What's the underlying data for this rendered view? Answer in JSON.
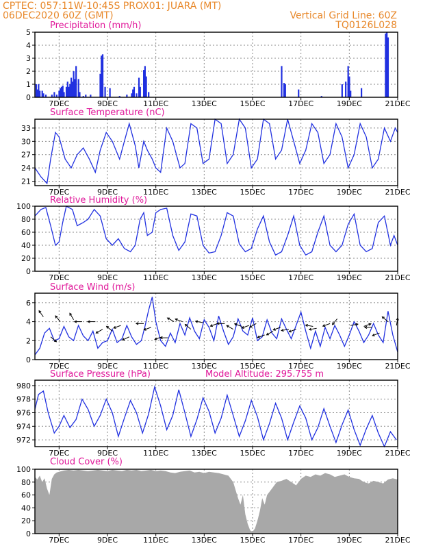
{
  "header": {
    "line1_left": "CPTEC:   057:11W-10:45S   PROX01: JUARA (MT)",
    "line2_left": "06DEC2020 60Z (GMT)",
    "line1_right": "Vertical Grid Line: 60Z",
    "line2_right": "TQ0126L028"
  },
  "colors": {
    "header": "#e8882a",
    "title": "#e0189a",
    "line": "#2030e0",
    "cloud": "#a8a8a8",
    "arrow": "#000000"
  },
  "x_axis": {
    "tick_labels": [
      "7DEC",
      "9DEC",
      "11DEC",
      "13DEC",
      "15DEC",
      "17DEC",
      "19DEC",
      "21DEC"
    ],
    "tick_days": [
      7,
      9,
      11,
      13,
      15,
      17,
      19,
      21
    ],
    "xlim": [
      6.0,
      21.0
    ]
  },
  "chart_data": [
    {
      "id": "precip",
      "type": "bar",
      "title": "Precipitation (mm/h)",
      "ylim": [
        0,
        5
      ],
      "yticks": [
        0,
        1,
        2,
        3,
        4,
        5
      ],
      "x": [
        6.05,
        6.1,
        6.15,
        6.2,
        6.3,
        6.35,
        6.45,
        6.7,
        6.8,
        6.9,
        7.0,
        7.05,
        7.1,
        7.15,
        7.2,
        7.3,
        7.35,
        7.4,
        7.45,
        7.5,
        7.55,
        7.6,
        7.65,
        7.7,
        7.8,
        7.85,
        8.0,
        8.1,
        8.3,
        8.7,
        8.75,
        8.8,
        8.9,
        9.1,
        9.5,
        9.8,
        10.0,
        10.05,
        10.1,
        10.2,
        10.3,
        10.35,
        10.5,
        10.55,
        10.6,
        10.7,
        16.2,
        16.3,
        16.35,
        16.9,
        17.85,
        18.7,
        18.85,
        18.95,
        19.0,
        19.05,
        19.5,
        20.5,
        20.55,
        20.6
      ],
      "values": [
        1.0,
        0.6,
        1.0,
        0.5,
        0.5,
        0.3,
        0.2,
        0.2,
        0.4,
        0.2,
        0.5,
        0.7,
        0.8,
        0.9,
        0.4,
        0.8,
        1.2,
        0.8,
        1.0,
        1.5,
        1.2,
        2.0,
        1.4,
        2.4,
        1.4,
        0.4,
        0.1,
        0.2,
        0.2,
        1.8,
        3.2,
        3.3,
        0.8,
        0.7,
        0.1,
        0.2,
        0.3,
        0.6,
        0.8,
        0.3,
        1.5,
        0.8,
        2.1,
        2.4,
        1.6,
        0.4,
        2.4,
        1.1,
        1.0,
        0.6,
        0.1,
        1.0,
        1.2,
        2.4,
        1.6,
        0.5,
        0.7,
        4.9,
        5.0,
        4.6
      ]
    },
    {
      "id": "temp",
      "type": "line",
      "title": "Surface Temperature (nC)",
      "ylim": [
        20,
        35
      ],
      "yticks": [
        21,
        24,
        27,
        30,
        33
      ],
      "x": [
        6.0,
        6.25,
        6.5,
        6.65,
        6.85,
        7.0,
        7.25,
        7.5,
        7.75,
        8.0,
        8.25,
        8.5,
        8.7,
        8.95,
        9.2,
        9.5,
        9.7,
        9.9,
        10.15,
        10.3,
        10.5,
        10.65,
        10.85,
        11.0,
        11.2,
        11.45,
        11.7,
        12.0,
        12.2,
        12.45,
        12.7,
        12.95,
        13.2,
        13.45,
        13.7,
        13.95,
        14.2,
        14.45,
        14.7,
        14.95,
        15.2,
        15.45,
        15.7,
        15.95,
        16.2,
        16.45,
        16.7,
        16.95,
        17.2,
        17.45,
        17.7,
        17.95,
        18.2,
        18.45,
        18.7,
        18.95,
        19.2,
        19.45,
        19.7,
        19.95,
        20.2,
        20.45,
        20.7,
        20.9,
        21.0
      ],
      "values": [
        24,
        22,
        20.5,
        26,
        32,
        31,
        26,
        24,
        27,
        28.5,
        26,
        23,
        28,
        32,
        30,
        26,
        30,
        34,
        29,
        24,
        30,
        28,
        26,
        24,
        23,
        33,
        30,
        24,
        25,
        34,
        33,
        25,
        26,
        35,
        34,
        25,
        27,
        35,
        33,
        24,
        26,
        35,
        34,
        26,
        28,
        35,
        30,
        25,
        28,
        34,
        32,
        25,
        27,
        34,
        31,
        24,
        27,
        34,
        31,
        24,
        26,
        33,
        30,
        33,
        32
      ]
    },
    {
      "id": "rh",
      "type": "line",
      "title": "Relative Humidity (%)",
      "ylim": [
        0,
        100
      ],
      "yticks": [
        0,
        20,
        40,
        60,
        80,
        100
      ],
      "x": [
        6.0,
        6.25,
        6.45,
        6.65,
        6.85,
        7.0,
        7.15,
        7.3,
        7.55,
        7.75,
        8.0,
        8.2,
        8.45,
        8.7,
        8.95,
        9.2,
        9.45,
        9.7,
        9.95,
        10.15,
        10.35,
        10.5,
        10.65,
        10.85,
        11.0,
        11.2,
        11.45,
        11.7,
        11.95,
        12.2,
        12.45,
        12.7,
        12.95,
        13.2,
        13.45,
        13.7,
        13.95,
        14.2,
        14.45,
        14.7,
        14.95,
        15.2,
        15.45,
        15.7,
        15.95,
        16.2,
        16.45,
        16.7,
        16.95,
        17.2,
        17.45,
        17.7,
        17.95,
        18.2,
        18.45,
        18.7,
        18.95,
        19.2,
        19.45,
        19.7,
        19.95,
        20.2,
        20.45,
        20.7,
        20.85,
        21.0
      ],
      "values": [
        85,
        95,
        98,
        70,
        40,
        45,
        75,
        100,
        95,
        70,
        75,
        80,
        95,
        85,
        50,
        40,
        50,
        35,
        30,
        40,
        80,
        90,
        55,
        60,
        90,
        95,
        97,
        55,
        32,
        45,
        88,
        85,
        40,
        28,
        30,
        55,
        90,
        85,
        42,
        30,
        35,
        65,
        85,
        45,
        25,
        30,
        55,
        85,
        40,
        25,
        30,
        60,
        85,
        40,
        30,
        40,
        72,
        88,
        40,
        30,
        35,
        75,
        85,
        40,
        55,
        40
      ]
    },
    {
      "id": "wind",
      "type": "line",
      "title": "Surface Wind (m/s)",
      "ylim": [
        0,
        7
      ],
      "yticks": [
        0,
        2,
        4,
        6
      ],
      "x": [
        6.0,
        6.2,
        6.4,
        6.6,
        6.8,
        7.0,
        7.2,
        7.4,
        7.6,
        7.8,
        8.0,
        8.2,
        8.4,
        8.6,
        8.8,
        9.0,
        9.2,
        9.4,
        9.6,
        9.8,
        10.0,
        10.2,
        10.4,
        10.55,
        10.7,
        10.85,
        11.0,
        11.2,
        11.4,
        11.6,
        11.8,
        12.0,
        12.2,
        12.4,
        12.6,
        12.8,
        13.0,
        13.2,
        13.4,
        13.6,
        13.8,
        14.0,
        14.2,
        14.4,
        14.6,
        14.8,
        15.0,
        15.2,
        15.4,
        15.6,
        15.8,
        16.0,
        16.2,
        16.4,
        16.6,
        16.8,
        17.0,
        17.2,
        17.4,
        17.6,
        17.8,
        18.0,
        18.2,
        18.4,
        18.6,
        18.8,
        19.0,
        19.2,
        19.4,
        19.6,
        19.8,
        20.0,
        20.2,
        20.4,
        20.6,
        20.8,
        21.0
      ],
      "values": [
        0.5,
        1.2,
        2.8,
        3.3,
        2.0,
        2.2,
        3.5,
        2.4,
        2.0,
        3.6,
        2.5,
        2.0,
        3.0,
        1.2,
        1.8,
        2.0,
        3.2,
        1.8,
        2.2,
        3.6,
        2.4,
        1.6,
        2.0,
        3.5,
        5.2,
        6.6,
        4.0,
        2.0,
        1.4,
        2.8,
        1.8,
        3.8,
        2.6,
        4.4,
        3.0,
        2.2,
        4.2,
        3.4,
        2.0,
        4.6,
        3.0,
        1.6,
        2.4,
        4.3,
        3.0,
        2.6,
        4.4,
        2.0,
        2.4,
        4.2,
        2.8,
        2.2,
        4.3,
        3.2,
        2.2,
        3.6,
        5.0,
        3.0,
        1.2,
        3.0,
        1.4,
        3.4,
        2.2,
        3.6,
        2.6,
        1.4,
        2.6,
        4.0,
        3.0,
        1.8,
        2.6,
        3.8,
        2.6,
        1.8,
        5.1,
        2.6,
        0.8
      ],
      "arrows_x": [
        6.35,
        6.65,
        7.05,
        7.6,
        7.95,
        8.5,
        8.8,
        9.2,
        9.55,
        9.9,
        10.5,
        10.8,
        11.25,
        11.5,
        11.75,
        12.1,
        12.45,
        12.95,
        13.55,
        13.85,
        14.2,
        14.55,
        14.85,
        15.15,
        15.5,
        15.85,
        16.15,
        16.5,
        16.8,
        17.5,
        17.65,
        18.2,
        18.5,
        19.05,
        19.6,
        19.95,
        20.25,
        20.6,
        20.95
      ],
      "arrows_y": [
        4.5,
        2.4,
        4.0,
        4.2,
        4.0,
        4.0,
        3.2,
        3.0,
        3.6,
        2.4,
        3.8,
        3.4,
        2.4,
        2.3,
        4.0,
        4.0,
        3.2,
        3.9,
        3.8,
        3.8,
        3.2,
        3.5,
        3.6,
        3.8,
        2.6,
        3.0,
        3.4,
        3.2,
        3.2,
        3.5,
        3.3,
        3.8,
        4.3,
        3.6,
        3.5,
        3.4,
        2.8,
        4.0,
        3.6
      ],
      "arrows_angle": [
        125,
        -40,
        130,
        120,
        180,
        180,
        210,
        140,
        200,
        205,
        180,
        200,
        200,
        180,
        150,
        160,
        140,
        170,
        200,
        180,
        150,
        160,
        200,
        210,
        200,
        210,
        200,
        190,
        200,
        170,
        190,
        200,
        230,
        10,
        20,
        180,
        200,
        140,
        80
      ]
    },
    {
      "id": "pressure",
      "type": "line",
      "title": "Surface Pressure (hPa)",
      "annotation": "Model Altitude: 295.755 m",
      "ylim": [
        971,
        980.8
      ],
      "yticks": [
        972,
        974,
        976,
        978,
        980
      ],
      "x": [
        6.0,
        6.15,
        6.35,
        6.55,
        6.8,
        7.0,
        7.2,
        7.45,
        7.7,
        7.95,
        8.2,
        8.45,
        8.7,
        8.95,
        9.2,
        9.45,
        9.7,
        9.95,
        10.2,
        10.45,
        10.7,
        10.95,
        11.2,
        11.45,
        11.7,
        11.95,
        12.2,
        12.45,
        12.7,
        12.95,
        13.2,
        13.45,
        13.7,
        13.95,
        14.2,
        14.45,
        14.7,
        14.95,
        15.2,
        15.45,
        15.7,
        15.95,
        16.2,
        16.45,
        16.7,
        16.95,
        17.2,
        17.45,
        17.7,
        17.95,
        18.2,
        18.45,
        18.7,
        18.95,
        19.2,
        19.45,
        19.7,
        19.95,
        20.2,
        20.45,
        20.7,
        20.95
      ],
      "values": [
        976.5,
        978.7,
        979.2,
        976.0,
        973.0,
        974.0,
        975.6,
        973.8,
        975.0,
        978.0,
        976.5,
        974.0,
        975.6,
        978.0,
        976.0,
        972.5,
        975.2,
        977.8,
        976.0,
        973.0,
        975.8,
        979.8,
        977.0,
        973.5,
        975.6,
        979.4,
        976.0,
        972.5,
        975.0,
        978.2,
        976.2,
        973.0,
        975.2,
        978.6,
        975.6,
        972.5,
        974.8,
        977.8,
        975.4,
        972.0,
        974.4,
        977.4,
        975.2,
        972.0,
        974.6,
        977.0,
        975.2,
        972.0,
        973.8,
        976.6,
        974.0,
        971.6,
        974.2,
        976.4,
        973.5,
        971.2,
        973.6,
        975.6,
        973.0,
        971.0,
        973.2,
        972.0
      ]
    },
    {
      "id": "cloud",
      "type": "area",
      "title": "Cloud Cover (%)",
      "ylim": [
        0,
        100
      ],
      "yticks": [
        0,
        20,
        40,
        60,
        80,
        100
      ],
      "x": [
        6.0,
        6.1,
        6.2,
        6.3,
        6.4,
        6.5,
        6.6,
        6.7,
        6.8,
        6.9,
        7.0,
        7.2,
        7.4,
        7.6,
        7.8,
        8.0,
        8.2,
        8.4,
        8.6,
        8.8,
        9.0,
        9.2,
        9.4,
        9.6,
        9.8,
        10.0,
        10.2,
        10.4,
        10.6,
        10.8,
        11.0,
        11.2,
        11.4,
        11.6,
        11.8,
        12.0,
        12.2,
        12.4,
        12.6,
        12.8,
        13.0,
        13.2,
        13.4,
        13.6,
        13.8,
        14.0,
        14.2,
        14.4,
        14.5,
        14.6,
        14.7,
        14.8,
        14.9,
        15.0,
        15.1,
        15.2,
        15.3,
        15.4,
        15.5,
        15.6,
        15.8,
        16.0,
        16.2,
        16.4,
        16.6,
        16.8,
        17.0,
        17.2,
        17.4,
        17.6,
        17.8,
        18.0,
        18.2,
        18.4,
        18.6,
        18.8,
        19.0,
        19.2,
        19.4,
        19.6,
        19.8,
        20.0,
        20.2,
        20.4,
        20.6,
        20.8,
        21.0
      ],
      "values": [
        88,
        84,
        90,
        80,
        86,
        70,
        60,
        85,
        92,
        95,
        96,
        98,
        99,
        98,
        99,
        98,
        97,
        98,
        99,
        98,
        97,
        99,
        98,
        97,
        99,
        98,
        99,
        97,
        98,
        99,
        97,
        98,
        97,
        95,
        94,
        96,
        97,
        98,
        95,
        96,
        94,
        96,
        95,
        94,
        92,
        90,
        80,
        55,
        45,
        60,
        30,
        15,
        5,
        3,
        8,
        20,
        35,
        55,
        45,
        60,
        70,
        80,
        82,
        85,
        80,
        75,
        85,
        90,
        88,
        92,
        90,
        94,
        92,
        88,
        90,
        92,
        88,
        86,
        85,
        80,
        78,
        82,
        80,
        78,
        84,
        86,
        84
      ]
    }
  ]
}
